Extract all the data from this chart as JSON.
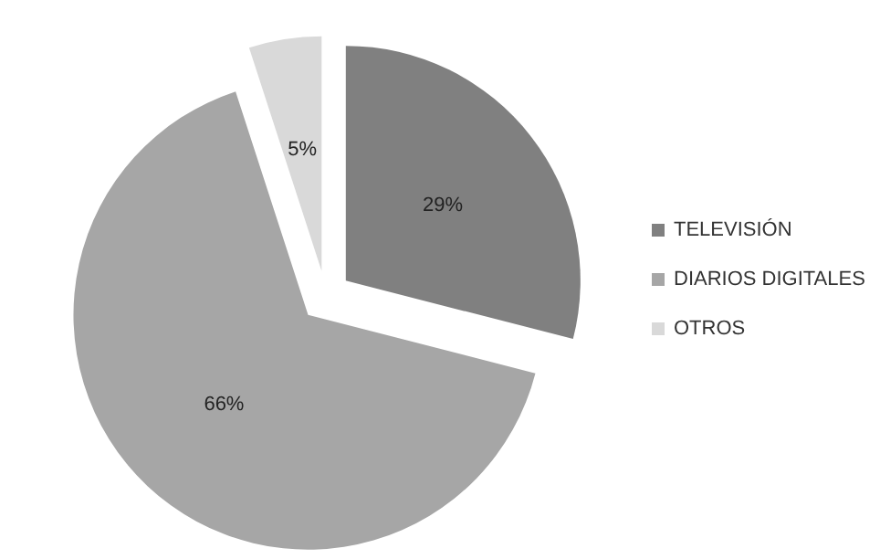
{
  "chart_data": {
    "type": "pie",
    "categories": [
      "TELEVISIÓN",
      "DIARIOS DIGITALES",
      "OTROS"
    ],
    "values": [
      29,
      66,
      5
    ],
    "colors": [
      "#808080",
      "#a6a6a6",
      "#d9d9d9"
    ],
    "value_labels": [
      "29%",
      "66%",
      "5%"
    ],
    "legend": "right"
  }
}
